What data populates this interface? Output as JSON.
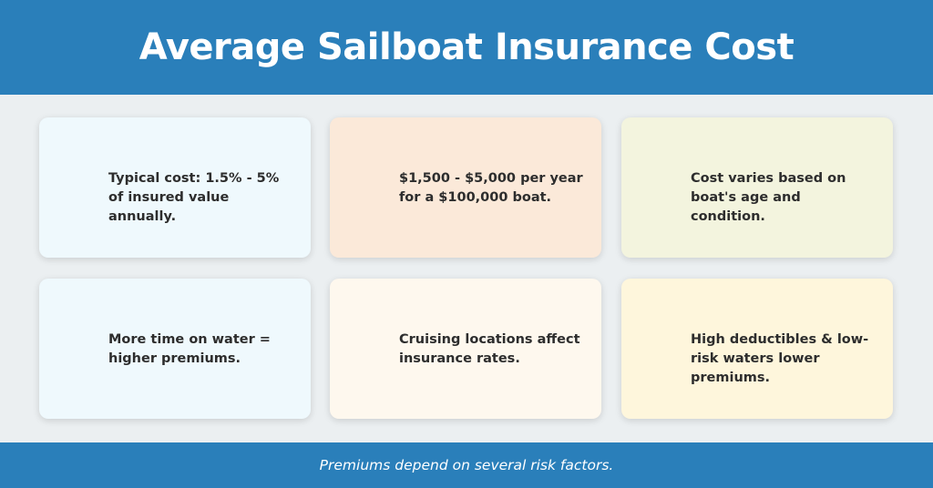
{
  "header": {
    "title": "Average Sailboat Insurance Cost",
    "background_color": "#2a7fba"
  },
  "cards": [
    {
      "text": "Typical cost: 1.5% - 5% of insured value annually.",
      "background_color": "#eff9fd"
    },
    {
      "text": "$1,500 - $5,000 per year for a $100,000 boat.",
      "background_color": "#fbe9d9"
    },
    {
      "text": "Cost varies based on boat's age and condition.",
      "background_color": "#f3f4de"
    },
    {
      "text": "More time on water = higher premiums.",
      "background_color": "#eff9fd"
    },
    {
      "text": "Cruising locations affect insurance rates.",
      "background_color": "#fef8ee"
    },
    {
      "text": "High deductibles & low-risk waters lower premiums.",
      "background_color": "#fef6dc"
    }
  ],
  "footer": {
    "text": "Premiums depend on several risk factors.",
    "background_color": "#2a7fba"
  }
}
